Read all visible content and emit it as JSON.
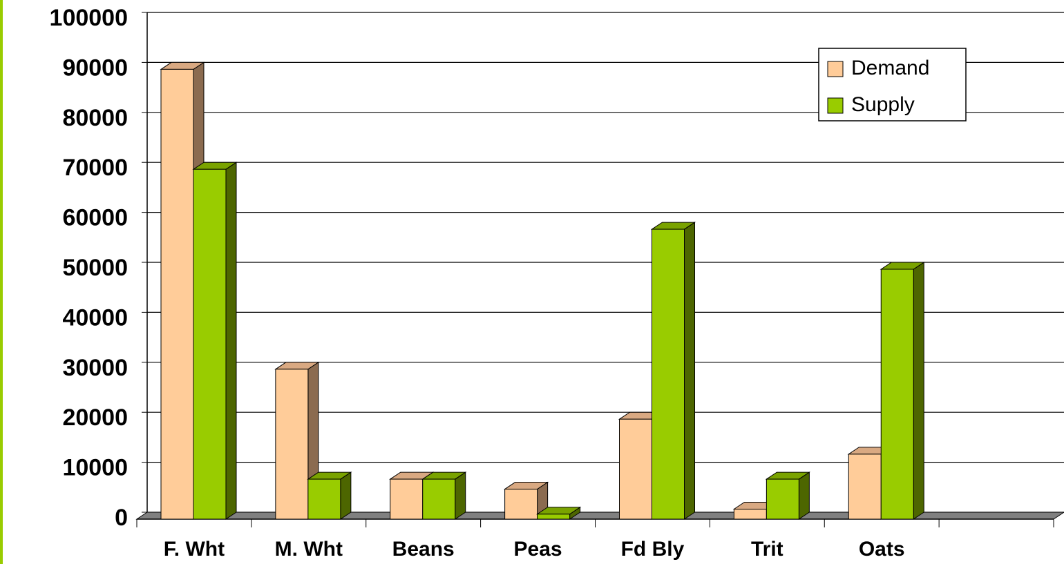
{
  "chart_data": {
    "type": "bar3d",
    "categories": [
      "F. Wht",
      "M. Wht",
      "Beans",
      "Peas",
      "Fd Bly",
      "Trit",
      "Oats",
      null
    ],
    "series": [
      {
        "name": "Demand",
        "color": "#ffcc99",
        "side": "#8b6b50",
        "top": "#d9a982",
        "values": [
          90000,
          30000,
          8000,
          6000,
          20000,
          2000,
          13000,
          null
        ]
      },
      {
        "name": "Supply",
        "color": "#99cc00",
        "side": "#4d6600",
        "top": "#7aa300",
        "values": [
          70000,
          8000,
          8000,
          1000,
          58000,
          8000,
          50000,
          null
        ]
      }
    ],
    "ylim": [
      0,
      100000
    ],
    "yticks": [
      0,
      10000,
      20000,
      30000,
      40000,
      50000,
      60000,
      70000,
      80000,
      90000,
      100000
    ],
    "grid": true,
    "legend": "upper-right"
  }
}
